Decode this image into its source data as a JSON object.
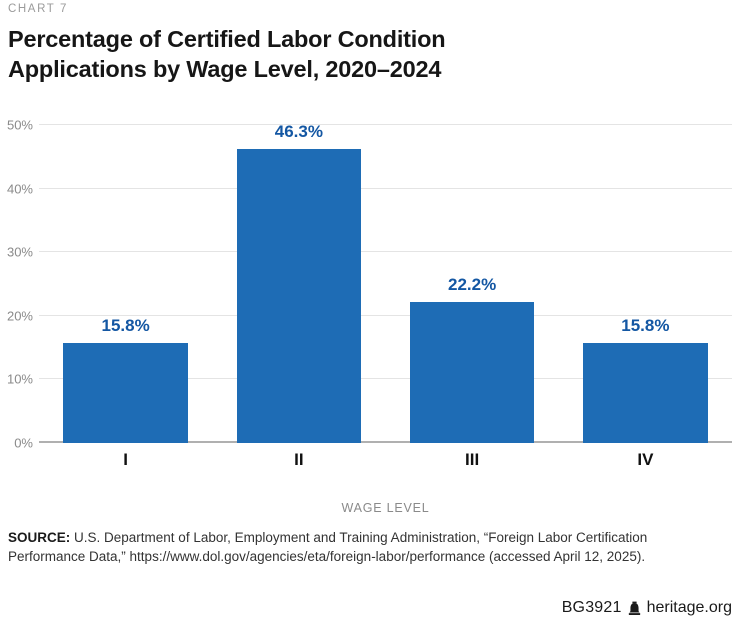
{
  "page": {
    "kicker": "CHART 7",
    "title": "Percentage of Certified Labor Condition Applications by Wage Level, 2020–2024"
  },
  "chart_data": {
    "type": "bar",
    "title": "Percentage of Certified Labor Condition Applications by Wage Level, 2020–2024",
    "categories": [
      "I",
      "II",
      "III",
      "IV"
    ],
    "values": [
      15.8,
      46.3,
      22.2,
      15.8
    ],
    "value_labels": [
      "15.8%",
      "46.3%",
      "22.2%",
      "15.8%"
    ],
    "xlabel": "WAGE LEVEL",
    "ylabel": "",
    "ylim": [
      0,
      50
    ],
    "yticks": [
      0,
      10,
      20,
      30,
      40,
      50
    ],
    "ytick_labels": [
      "0%",
      "10%",
      "20%",
      "30%",
      "40%",
      "50%"
    ],
    "grid": true,
    "legend": false,
    "bar_color": "#1e6cb5",
    "value_label_color": "#1457a3",
    "bar_width_pct": 18,
    "slot_width_pct": 25
  },
  "source": {
    "label": "SOURCE:",
    "text": " U.S. Department of Labor, Employment and Training Administration, “Foreign Labor Certification Performance Data,” https://www.dol.gov/agencies/eta/foreign-labor/performance (accessed April 12, 2025)."
  },
  "footer": {
    "report_id": "BG3921",
    "site": "heritage.org",
    "icon": "heritage-bell-icon"
  },
  "colors": {
    "bar": "#1e6cb5",
    "value_label": "#1457a3",
    "gridline": "#e4e4e4",
    "axis_line": "#b0b0b0",
    "muted_text": "#8a8a8a",
    "title_text": "#161616"
  }
}
